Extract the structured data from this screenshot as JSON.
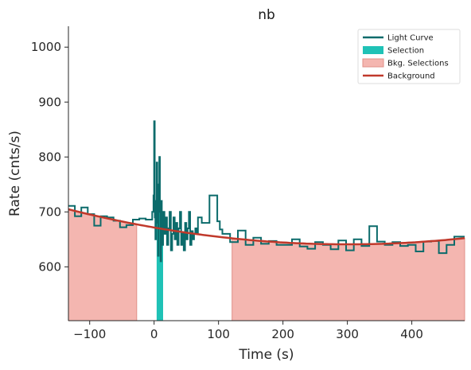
{
  "chart_data": {
    "type": "line",
    "title": "nb",
    "xlabel": "Time (s)",
    "ylabel": "Rate (cnts/s)",
    "xlim": [
      -133,
      482
    ],
    "ylim": [
      502,
      1038
    ],
    "xticks": [
      -100,
      0,
      100,
      200,
      300,
      400
    ],
    "xtick_labels": [
      "−100",
      "0",
      "100",
      "200",
      "300",
      "400"
    ],
    "yticks": [
      600,
      700,
      800,
      900,
      1000
    ],
    "ytick_labels": [
      "600",
      "700",
      "800",
      "900",
      "1000"
    ],
    "legend_position": "top-right",
    "colors": {
      "light_curve": "#0b6b6b",
      "selection": "#1fc2b6",
      "bkg_selection_fill": "#f4b6b0",
      "bkg_selection_edge": "#e09088",
      "background": "#c0392b"
    },
    "legend": [
      {
        "label": "Light Curve",
        "kind": "line",
        "color": "#0b6b6b"
      },
      {
        "label": "Selection",
        "kind": "patch",
        "color": "#1fc2b6"
      },
      {
        "label": "Bkg. Selections",
        "kind": "patch",
        "color": "#f4b6b0"
      },
      {
        "label": "Background",
        "kind": "line",
        "color": "#c0392b"
      }
    ],
    "selection": [
      4,
      14
    ],
    "bkg_selections": [
      [
        -133,
        -27
      ],
      [
        121,
        482
      ]
    ],
    "background_poly": {
      "center": 300,
      "a": 641,
      "b": 0.00034
    },
    "light_curve": {
      "x": [
        -133,
        -123,
        -113,
        -103,
        -93,
        -83,
        -73,
        -63,
        -53,
        -43,
        -33,
        -23,
        -13,
        -3,
        -1,
        0,
        1,
        2,
        3,
        4,
        5,
        6,
        7,
        8,
        9,
        10,
        11,
        12,
        13,
        14,
        16,
        18,
        20,
        22,
        24,
        26,
        28,
        30,
        32,
        34,
        36,
        38,
        40,
        42,
        44,
        46,
        48,
        50,
        52,
        54,
        56,
        58,
        60,
        62,
        64,
        66,
        68,
        74,
        86,
        98,
        102,
        106,
        118,
        130,
        142,
        154,
        166,
        178,
        190,
        202,
        214,
        226,
        238,
        250,
        262,
        274,
        286,
        298,
        310,
        322,
        334,
        346,
        358,
        370,
        382,
        394,
        406,
        418,
        430,
        442,
        454,
        466,
        482
      ],
      "y": [
        711,
        692,
        708,
        696,
        675,
        692,
        690,
        684,
        672,
        676,
        686,
        688,
        686,
        700,
        730,
        865,
        690,
        650,
        720,
        790,
        680,
        620,
        750,
        800,
        700,
        610,
        720,
        680,
        640,
        700,
        660,
        690,
        640,
        670,
        700,
        630,
        660,
        690,
        650,
        680,
        640,
        670,
        700,
        640,
        660,
        630,
        680,
        650,
        670,
        700,
        640,
        665,
        650,
        660,
        670,
        660,
        690,
        680,
        730,
        683,
        668,
        660,
        645,
        666,
        640,
        653,
        642,
        647,
        640,
        640,
        650,
        637,
        633,
        645,
        640,
        632,
        648,
        630,
        650,
        638,
        674,
        646,
        640,
        645,
        638,
        640,
        628,
        646,
        647,
        625,
        640,
        655,
        654
      ]
    }
  }
}
